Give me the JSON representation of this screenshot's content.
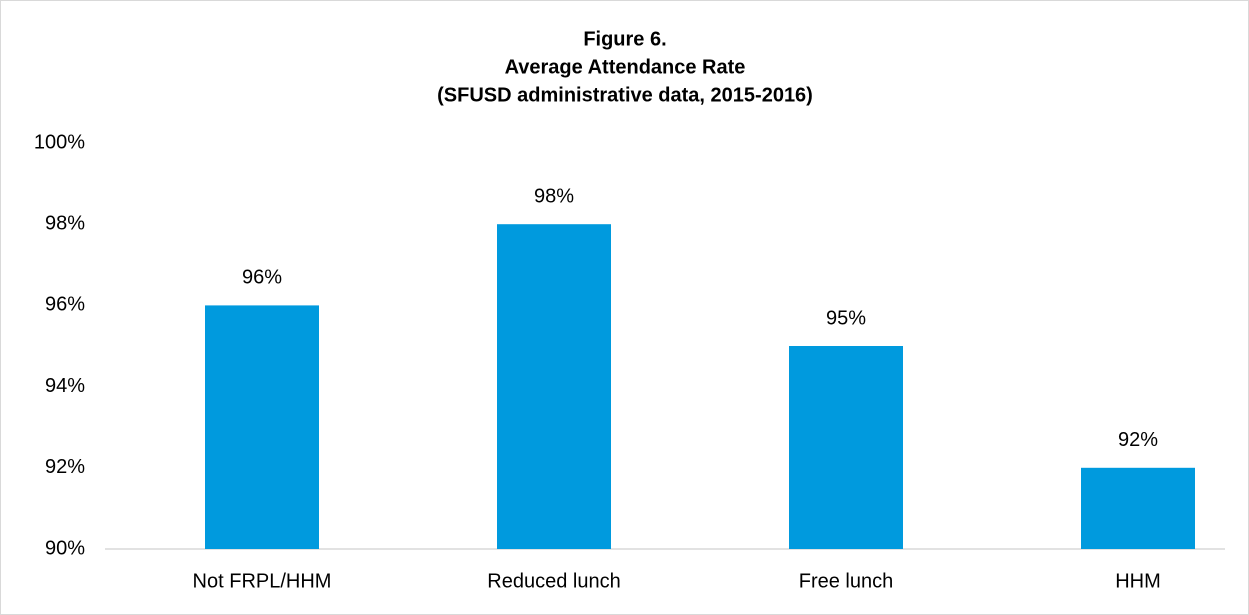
{
  "chart_data": {
    "type": "bar",
    "title": [
      "Figure 6.",
      "Average Attendance Rate",
      "(SFUSD administrative data, 2015-2016)"
    ],
    "categories": [
      "Not FRPL/HHM",
      "Reduced lunch",
      "Free lunch",
      "HHM"
    ],
    "values": [
      96,
      98,
      95,
      92
    ],
    "value_labels": [
      "96%",
      "98%",
      "95%",
      "92%"
    ],
    "color": "#009ade",
    "ylim": [
      90,
      100
    ],
    "yticks": [
      {
        "value": 90,
        "label": "90%"
      },
      {
        "value": 92,
        "label": "92%"
      },
      {
        "value": 94,
        "label": "94%"
      },
      {
        "value": 96,
        "label": "96%"
      },
      {
        "value": 98,
        "label": "98%"
      },
      {
        "value": 100,
        "label": "100%"
      }
    ],
    "grid": false
  }
}
